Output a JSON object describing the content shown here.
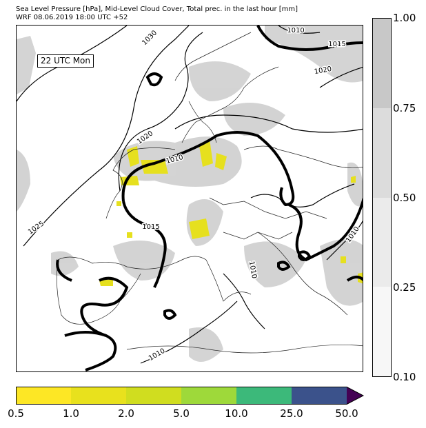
{
  "header": {
    "line1": "Sea Level Pressure [hPa], Mid-Level Cloud Cover, Total prec. in the last hour [mm]",
    "line2": "WRF 08.06.2019 18:00 UTC +52"
  },
  "map": {
    "time_label": "22 UTC Mon",
    "isobar_labels": [
      "1030",
      "1010",
      "1015",
      "1020",
      "1020",
      "1010",
      "1025",
      "1015",
      "1010",
      "1010",
      "1010"
    ]
  },
  "cloud_colorbar": {
    "ticks": [
      "1.00",
      "0.75",
      "0.50",
      "0.25",
      "0.10"
    ],
    "colors": [
      "#c8c8c8",
      "#dcdcdc",
      "#ebebeb",
      "#f7f7f7"
    ]
  },
  "precip_colorbar": {
    "ticks": [
      "0.5",
      "1.0",
      "2.0",
      "5.0",
      "10.0",
      "25.0",
      "50.0"
    ],
    "colors": [
      "#fde725",
      "#e8e11d",
      "#d0dd1f",
      "#9ed93a",
      "#3cb97a",
      "#31c07c",
      "#3b528b",
      "#440154"
    ]
  }
}
